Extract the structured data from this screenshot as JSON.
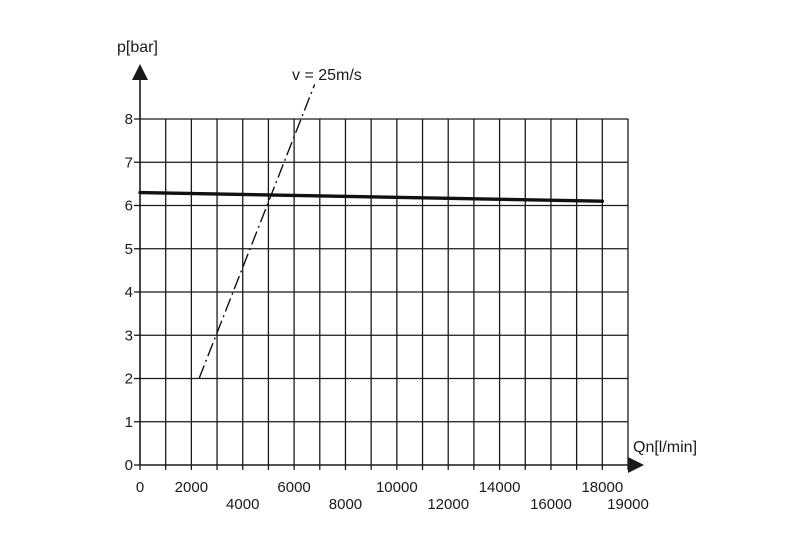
{
  "chart_data": {
    "type": "line",
    "title": "",
    "xlabel": "Qn[l/min]",
    "ylabel": "p[bar]",
    "xlim": [
      0,
      19000
    ],
    "ylim": [
      0,
      8
    ],
    "grid": true,
    "x_grid_step": 1000,
    "y_grid_step": 1,
    "x_ticks_row1": [
      "0",
      "2000",
      "6000",
      "10000",
      "14000",
      "18000"
    ],
    "x_ticks_row2": [
      "4000",
      "8000",
      "12000",
      "16000",
      "19000"
    ],
    "y_ticks": [
      "0",
      "1",
      "2",
      "3",
      "4",
      "5",
      "6",
      "7",
      "8"
    ],
    "series": [
      {
        "style": "solid-thick",
        "color": "#111111",
        "x": [
          0,
          18000
        ],
        "y": [
          6.3,
          6.1
        ]
      },
      {
        "style": "dash-dot",
        "color": "#111111",
        "x": [
          2300,
          6800
        ],
        "y": [
          2.0,
          8.8
        ]
      }
    ],
    "annotations": [
      {
        "text": "v = 25m/s"
      }
    ]
  }
}
